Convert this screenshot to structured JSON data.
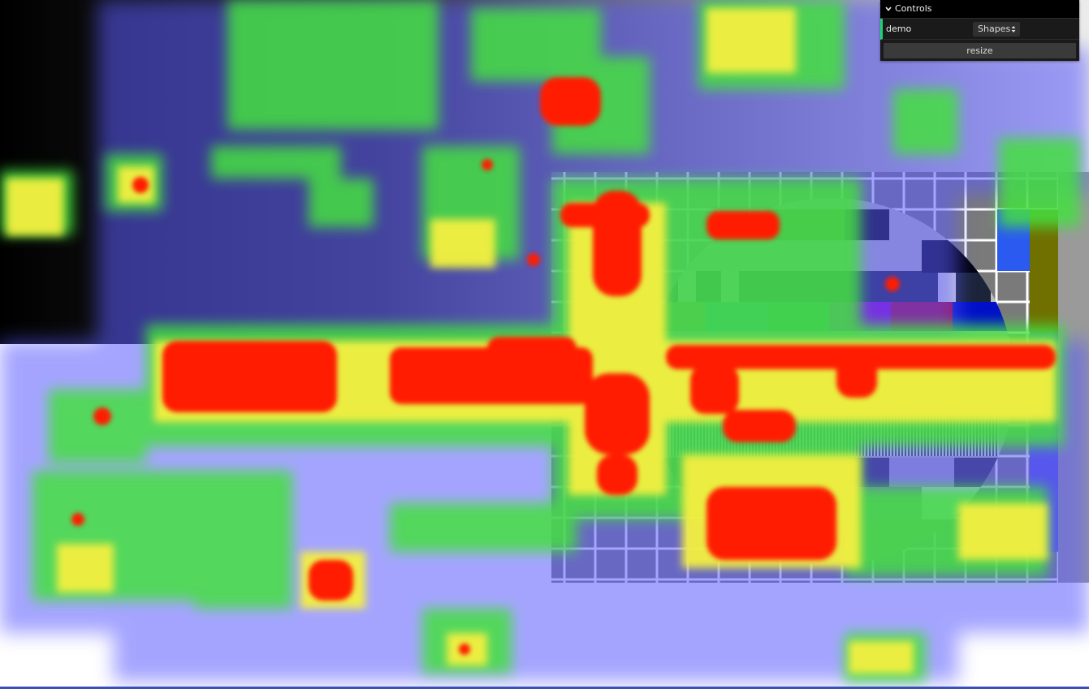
{
  "controls": {
    "title": "Controls",
    "demo_label": "demo",
    "demo_value": "Shapes",
    "resize_label": "resize"
  },
  "icons": {
    "collapse": "chevron-down-icon",
    "select_arrows": "up-down-arrows-icon"
  },
  "colors": {
    "panel_bg": "#1a1a1a",
    "title_bg": "#000000",
    "accent": "#1ed36f",
    "heat_low": "#3c3cff",
    "heat_mid": "#38e04a",
    "heat_high": "#ff1000"
  }
}
